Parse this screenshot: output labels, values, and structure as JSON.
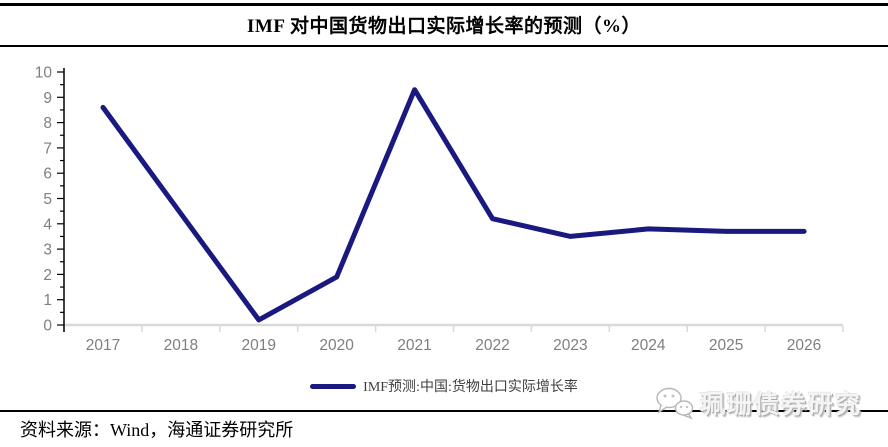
{
  "title": "IMF 对中国货物出口实际增长率的预测（%）",
  "chart_data": {
    "type": "line",
    "title": "IMF 对中国货物出口实际增长率的预测（%）",
    "categories": [
      "2017",
      "2018",
      "2019",
      "2020",
      "2021",
      "2022",
      "2023",
      "2024",
      "2025",
      "2026"
    ],
    "series": [
      {
        "name": "IMF预测:中国:货物出口实际增长率",
        "values": [
          8.6,
          4.4,
          0.2,
          1.9,
          9.3,
          4.2,
          3.5,
          3.8,
          3.7,
          3.7
        ]
      }
    ],
    "xlabel": "",
    "ylabel": "",
    "ylim": [
      0,
      10
    ],
    "y_tick_step": 1,
    "y_minor_tick_step": 0.5,
    "grid": false,
    "legend_position": "bottom",
    "line_color": "#191980",
    "axis_label_color": "#7f7f7f",
    "x_axis_color": "#d9d9d9",
    "y_axis_color": "#000000"
  },
  "footer": {
    "source": "资料来源：Wind，海通证券研究所"
  },
  "watermark": {
    "text": "珮珊债券研究",
    "icon": "wechat-icon"
  }
}
